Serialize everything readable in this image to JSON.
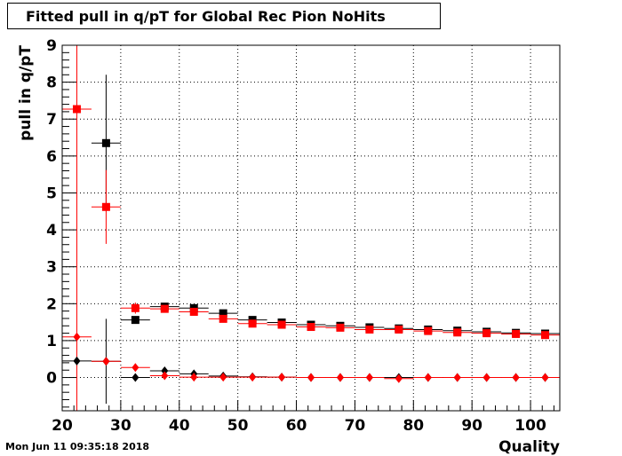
{
  "title": "Fitted pull in q/pT for Global Rec Pion NoHits",
  "timestamp": "Mon Jun 11 09:35:18 2018",
  "chart_data": {
    "type": "scatter",
    "title": "Fitted pull in q/pT for Global Rec Pion NoHits",
    "xlabel": "Quality",
    "ylabel": "pull in q/pT",
    "xlim": [
      20,
      105
    ],
    "ylim": [
      -0.9,
      9
    ],
    "x_ticks": [
      "20",
      "30",
      "40",
      "50",
      "60",
      "70",
      "80",
      "90",
      "100"
    ],
    "y_ticks": [
      "0",
      "1",
      "2",
      "3",
      "4",
      "5",
      "6",
      "7",
      "8",
      "9"
    ],
    "grid": true,
    "series": [
      {
        "marker": "square",
        "color": "#000000",
        "points": [
          {
            "x": 27.5,
            "y": 6.35,
            "xerr": 2.5,
            "yerr": 1.85
          },
          {
            "x": 32.5,
            "y": 1.56,
            "xerr": 2.5,
            "yerr": 0.1
          },
          {
            "x": 37.5,
            "y": 1.92,
            "xerr": 2.5,
            "yerr": 0.05
          },
          {
            "x": 42.5,
            "y": 1.88,
            "xerr": 2.5,
            "yerr": 0.04
          },
          {
            "x": 47.5,
            "y": 1.74,
            "xerr": 2.5,
            "yerr": 0.03
          },
          {
            "x": 52.5,
            "y": 1.56,
            "xerr": 2.5,
            "yerr": 0.03
          },
          {
            "x": 57.5,
            "y": 1.49,
            "xerr": 2.5,
            "yerr": 0.03
          },
          {
            "x": 62.5,
            "y": 1.43,
            "xerr": 2.5,
            "yerr": 0.03
          },
          {
            "x": 67.5,
            "y": 1.4,
            "xerr": 2.5,
            "yerr": 0.03
          },
          {
            "x": 72.5,
            "y": 1.36,
            "xerr": 2.5,
            "yerr": 0.03
          },
          {
            "x": 77.5,
            "y": 1.33,
            "xerr": 2.5,
            "yerr": 0.03
          },
          {
            "x": 82.5,
            "y": 1.3,
            "xerr": 2.5,
            "yerr": 0.03
          },
          {
            "x": 87.5,
            "y": 1.27,
            "xerr": 2.5,
            "yerr": 0.03
          },
          {
            "x": 92.5,
            "y": 1.24,
            "xerr": 2.5,
            "yerr": 0.03
          },
          {
            "x": 97.5,
            "y": 1.21,
            "xerr": 2.5,
            "yerr": 0.03
          },
          {
            "x": 102.5,
            "y": 1.19,
            "xerr": 2.5,
            "yerr": 0.03
          }
        ]
      },
      {
        "marker": "square",
        "color": "#ff0000",
        "points": [
          {
            "x": 22.5,
            "y": 7.27,
            "xerr": 2.5,
            "yerr": 9.0
          },
          {
            "x": 27.5,
            "y": 4.62,
            "xerr": 2.5,
            "yerr": 1.0
          },
          {
            "x": 32.5,
            "y": 1.88,
            "xerr": 2.5,
            "yerr": 0.15
          },
          {
            "x": 37.5,
            "y": 1.86,
            "xerr": 2.5,
            "yerr": 0.08
          },
          {
            "x": 42.5,
            "y": 1.78,
            "xerr": 2.5,
            "yerr": 0.05
          },
          {
            "x": 47.5,
            "y": 1.59,
            "xerr": 2.5,
            "yerr": 0.04
          },
          {
            "x": 52.5,
            "y": 1.46,
            "xerr": 2.5,
            "yerr": 0.03
          },
          {
            "x": 57.5,
            "y": 1.43,
            "xerr": 2.5,
            "yerr": 0.03
          },
          {
            "x": 62.5,
            "y": 1.37,
            "xerr": 2.5,
            "yerr": 0.03
          },
          {
            "x": 67.5,
            "y": 1.35,
            "xerr": 2.5,
            "yerr": 0.03
          },
          {
            "x": 72.5,
            "y": 1.3,
            "xerr": 2.5,
            "yerr": 0.03
          },
          {
            "x": 77.5,
            "y": 1.3,
            "xerr": 2.5,
            "yerr": 0.03
          },
          {
            "x": 82.5,
            "y": 1.26,
            "xerr": 2.5,
            "yerr": 0.03
          },
          {
            "x": 87.5,
            "y": 1.22,
            "xerr": 2.5,
            "yerr": 0.03
          },
          {
            "x": 92.5,
            "y": 1.2,
            "xerr": 2.5,
            "yerr": 0.03
          },
          {
            "x": 97.5,
            "y": 1.18,
            "xerr": 2.5,
            "yerr": 0.03
          },
          {
            "x": 102.5,
            "y": 1.15,
            "xerr": 2.5,
            "yerr": 0.03
          }
        ]
      },
      {
        "marker": "diamond",
        "color": "#000000",
        "points": [
          {
            "x": 22.5,
            "y": 0.45,
            "xerr": 2.5,
            "yerr": 0.02
          },
          {
            "x": 27.5,
            "y": 0.44,
            "xerr": 2.5,
            "yerr": 1.15
          },
          {
            "x": 32.5,
            "y": 0.0,
            "xerr": 2.5,
            "yerr": 0.02
          },
          {
            "x": 37.5,
            "y": 0.18,
            "xerr": 2.5,
            "yerr": 0.02
          },
          {
            "x": 42.5,
            "y": 0.1,
            "xerr": 2.5,
            "yerr": 0.02
          },
          {
            "x": 47.5,
            "y": 0.04,
            "xerr": 2.5,
            "yerr": 0.02
          },
          {
            "x": 52.5,
            "y": 0.02,
            "xerr": 2.5,
            "yerr": 0.02
          },
          {
            "x": 57.5,
            "y": 0.01,
            "xerr": 2.5,
            "yerr": 0.02
          },
          {
            "x": 62.5,
            "y": 0.0,
            "xerr": 2.5,
            "yerr": 0.02
          },
          {
            "x": 67.5,
            "y": 0.0,
            "xerr": 2.5,
            "yerr": 0.02
          },
          {
            "x": 72.5,
            "y": 0.0,
            "xerr": 2.5,
            "yerr": 0.02
          },
          {
            "x": 77.5,
            "y": 0.0,
            "xerr": 2.5,
            "yerr": 0.02
          },
          {
            "x": 82.5,
            "y": 0.0,
            "xerr": 2.5,
            "yerr": 0.02
          },
          {
            "x": 87.5,
            "y": 0.0,
            "xerr": 2.5,
            "yerr": 0.02
          },
          {
            "x": 92.5,
            "y": 0.0,
            "xerr": 2.5,
            "yerr": 0.02
          },
          {
            "x": 97.5,
            "y": 0.0,
            "xerr": 2.5,
            "yerr": 0.02
          },
          {
            "x": 102.5,
            "y": 0.0,
            "xerr": 2.5,
            "yerr": 0.02
          }
        ]
      },
      {
        "marker": "diamond",
        "color": "#ff0000",
        "points": [
          {
            "x": 22.5,
            "y": 1.1,
            "xerr": 2.5,
            "yerr": 0.02
          },
          {
            "x": 27.5,
            "y": 0.44,
            "xerr": 2.5,
            "yerr": 0.05
          },
          {
            "x": 32.5,
            "y": 0.27,
            "xerr": 2.5,
            "yerr": 0.05
          },
          {
            "x": 37.5,
            "y": 0.05,
            "xerr": 2.5,
            "yerr": 0.03
          },
          {
            "x": 42.5,
            "y": 0.01,
            "xerr": 2.5,
            "yerr": 0.02
          },
          {
            "x": 47.5,
            "y": 0.01,
            "xerr": 2.5,
            "yerr": 0.02
          },
          {
            "x": 52.5,
            "y": 0.01,
            "xerr": 2.5,
            "yerr": 0.02
          },
          {
            "x": 57.5,
            "y": 0.01,
            "xerr": 2.5,
            "yerr": 0.02
          },
          {
            "x": 62.5,
            "y": 0.0,
            "xerr": 2.5,
            "yerr": 0.02
          },
          {
            "x": 67.5,
            "y": 0.0,
            "xerr": 2.5,
            "yerr": 0.02
          },
          {
            "x": 72.5,
            "y": 0.0,
            "xerr": 2.5,
            "yerr": 0.02
          },
          {
            "x": 77.5,
            "y": -0.03,
            "xerr": 2.5,
            "yerr": 0.02
          },
          {
            "x": 82.5,
            "y": 0.0,
            "xerr": 2.5,
            "yerr": 0.02
          },
          {
            "x": 87.5,
            "y": 0.0,
            "xerr": 2.5,
            "yerr": 0.02
          },
          {
            "x": 92.5,
            "y": 0.0,
            "xerr": 2.5,
            "yerr": 0.02
          },
          {
            "x": 97.5,
            "y": 0.0,
            "xerr": 2.5,
            "yerr": 0.02
          },
          {
            "x": 102.5,
            "y": 0.0,
            "xerr": 2.5,
            "yerr": 0.02
          }
        ]
      }
    ]
  }
}
